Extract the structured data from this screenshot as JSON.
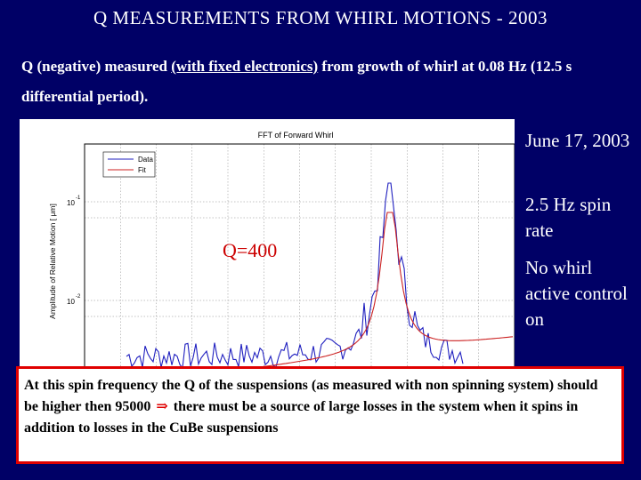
{
  "page": {
    "title": "Q  MEASUREMENTS  FROM  WHIRL  MOTIONS - 2003",
    "subtitle_pre": "Q (negative) measured ",
    "subtitle_link": "(with fixed electronics)",
    "subtitle_post": " from growth of whirl at 0.08 Hz (12.5 s differential period).",
    "side_notes": [
      "June 17, 2003",
      "2.5 Hz spin rate",
      "No whirl active control on"
    ],
    "note": {
      "text_before": "At this spin frequency the Q of the suspensions (as measured  with non spinning system) should be higher then 95000 ",
      "arrow": "⇒",
      "text_after": " there must be a source of large losses in the system  when it spins in addition to losses in the CuBe suspensions"
    }
  },
  "chart_data": {
    "type": "line",
    "title": "FFT of Forward Whirl",
    "ylabel": "Amplitude of Relative Motion [  μm]",
    "ytick_labels": [
      "10",
      "10"
    ],
    "ytick_exponents": [
      "-1",
      "-2"
    ],
    "legend": [
      "Data",
      "Fit"
    ],
    "annotation": "Q=400",
    "grid": true,
    "series": [
      {
        "name": "Data",
        "color": "#1f1fbf"
      },
      {
        "name": "Fit",
        "color": "#cc2222"
      }
    ],
    "peak_x_relative": 0.08
  },
  "colors": {
    "background": "#000066",
    "accent": "#e00000",
    "data_line": "#1f1fbf",
    "fit_line": "#cc2222"
  }
}
